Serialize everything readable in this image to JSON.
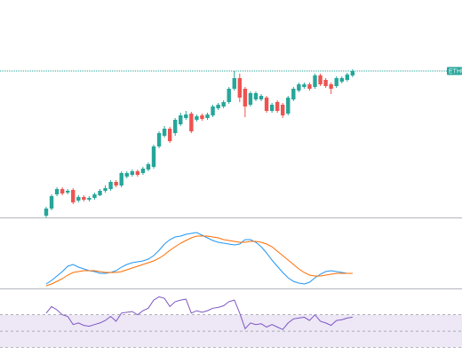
{
  "chart_data": [
    {
      "type": "candlestick",
      "price_label": "ETHU",
      "up_color": "#26a69a",
      "down_color": "#ef5350",
      "ylim": [
        0,
        170
      ],
      "open": [
        2,
        10,
        26,
        32,
        28,
        31,
        19,
        23,
        20,
        22,
        25,
        30,
        32,
        40,
        36,
        46,
        48,
        52,
        50,
        54,
        57,
        80,
        92,
        100,
        95,
        105,
        112,
        117,
        110,
        115,
        112,
        115,
        123,
        125,
        130,
        145,
        157,
        145,
        127,
        133,
        133,
        135,
        120,
        130,
        127,
        117,
        133,
        143,
        147,
        150,
        147,
        160,
        155,
        150,
        148,
        153,
        155,
        160
      ],
      "high": [
        12,
        26,
        34,
        34,
        32,
        33,
        25,
        25,
        24,
        28,
        32,
        36,
        42,
        42,
        52,
        52,
        54,
        54,
        57,
        62,
        82,
        97,
        103,
        102,
        112,
        118,
        120,
        119,
        116,
        117,
        118,
        127,
        129,
        132,
        147,
        165,
        162,
        147,
        142,
        142,
        139,
        137,
        129,
        132,
        129,
        137,
        147,
        152,
        152,
        152,
        162,
        162,
        157,
        152,
        159,
        159,
        163,
        167
      ],
      "low": [
        0,
        8,
        24,
        25,
        26,
        15,
        17,
        18,
        18,
        20,
        24,
        28,
        30,
        34,
        34,
        44,
        46,
        46,
        48,
        52,
        55,
        78,
        90,
        84,
        92,
        103,
        110,
        95,
        108,
        109,
        110,
        113,
        121,
        123,
        128,
        143,
        130,
        113,
        125,
        131,
        131,
        118,
        118,
        118,
        112,
        115,
        131,
        141,
        145,
        143,
        145,
        148,
        146,
        139,
        146,
        151,
        153,
        158
      ],
      "close": [
        10,
        24,
        32,
        27,
        30,
        17,
        23,
        20,
        22,
        26,
        30,
        33,
        40,
        36,
        50,
        50,
        52,
        48,
        55,
        60,
        80,
        95,
        100,
        86,
        110,
        115,
        116,
        97,
        114,
        111,
        116,
        125,
        127,
        130,
        145,
        157,
        135,
        125,
        140,
        140,
        137,
        120,
        127,
        120,
        115,
        135,
        145,
        150,
        150,
        145,
        160,
        150,
        148,
        145,
        157,
        157,
        161,
        165
      ]
    },
    {
      "type": "line",
      "ylim": [
        0,
        78
      ],
      "series": [
        {
          "color": "#2196f3",
          "values": [
            5,
            9,
            14,
            19,
            25,
            27,
            24,
            22,
            20,
            19,
            17,
            17,
            18,
            20,
            24,
            27,
            29,
            30,
            31,
            33,
            37,
            43,
            50,
            55,
            58,
            59,
            61,
            62,
            63,
            60,
            57,
            54,
            52,
            51,
            50,
            49,
            50,
            55,
            55,
            52,
            47,
            40,
            32,
            25,
            18,
            12,
            8,
            6,
            5,
            7,
            12,
            16,
            19,
            20,
            19,
            18,
            17,
            17
          ]
        },
        {
          "color": "#ff6d00",
          "values": [
            3,
            5,
            8,
            11,
            15,
            18,
            19,
            20,
            20,
            20,
            19,
            18,
            18,
            18,
            19,
            21,
            23,
            25,
            27,
            29,
            31,
            34,
            38,
            43,
            47,
            51,
            54,
            57,
            59,
            59,
            59,
            58,
            57,
            55,
            54,
            53,
            52,
            52,
            53,
            53,
            52,
            50,
            47,
            42,
            37,
            32,
            27,
            22,
            18,
            15,
            14,
            14,
            15,
            16,
            17,
            17,
            17,
            17
          ]
        }
      ]
    },
    {
      "type": "line",
      "ylim": [
        23,
        100
      ],
      "bands": [
        30,
        50,
        70
      ],
      "band_color": "#ede7f6",
      "series": [
        {
          "color": "#7e57c2",
          "values": [
            72,
            80,
            76,
            70,
            68,
            58,
            60,
            57,
            56,
            58,
            60,
            63,
            68,
            62,
            72,
            73,
            74,
            70,
            75,
            78,
            88,
            92,
            90,
            80,
            86,
            88,
            89,
            72,
            75,
            73,
            75,
            78,
            79,
            81,
            86,
            88,
            72,
            53,
            60,
            58,
            59,
            55,
            58,
            55,
            52,
            60,
            65,
            66,
            67,
            63,
            70,
            62,
            60,
            57,
            63,
            64,
            66,
            67
          ]
        }
      ]
    }
  ]
}
